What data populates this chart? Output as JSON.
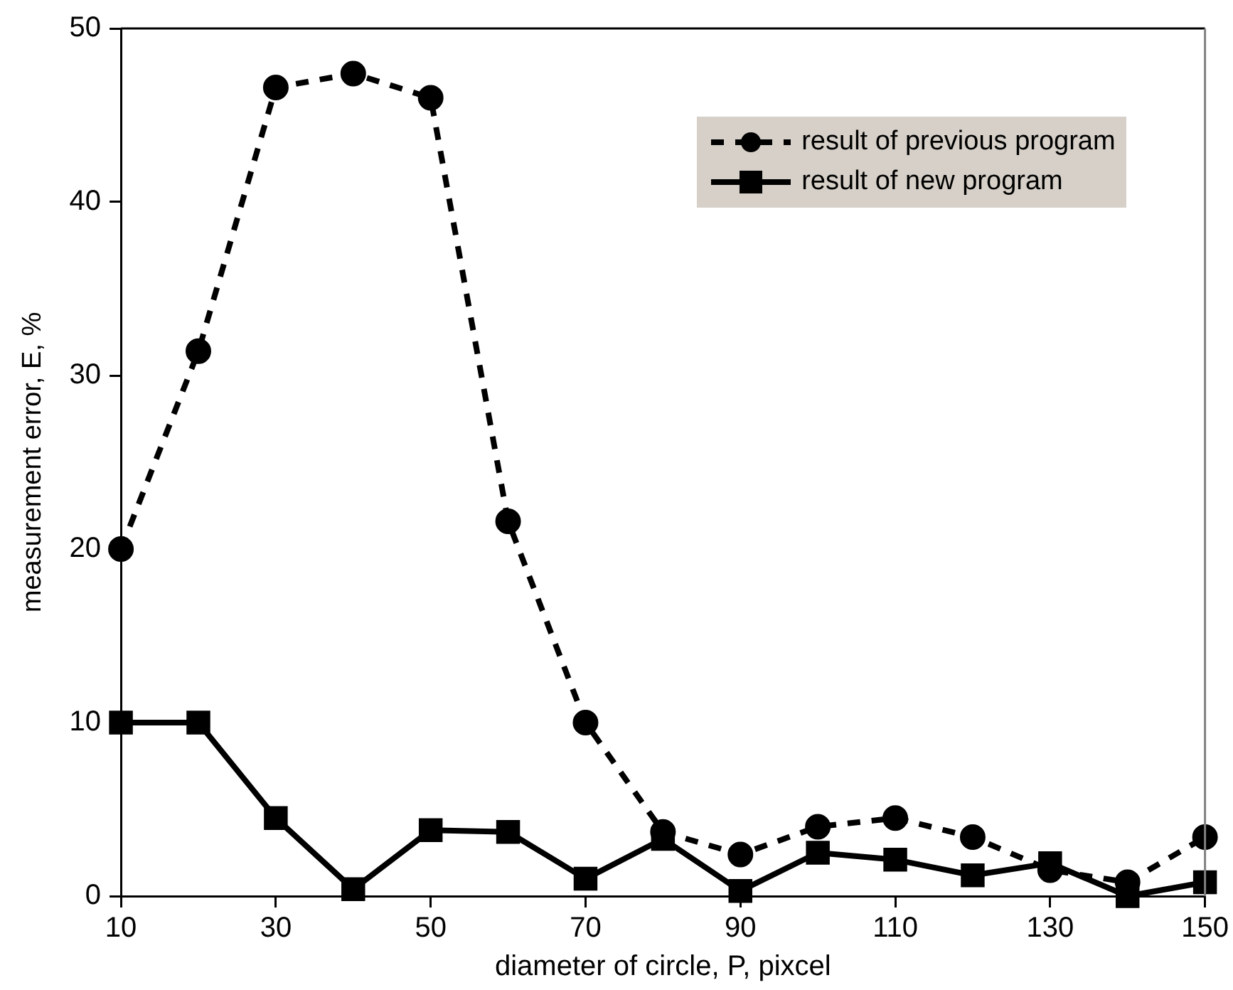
{
  "chart_data": {
    "type": "line",
    "xlabel": "diameter of circle, P, pixcel",
    "ylabel": "measurement error, E, %",
    "x": [
      10,
      20,
      30,
      40,
      50,
      60,
      70,
      80,
      90,
      100,
      110,
      120,
      130,
      140,
      150
    ],
    "xlim": [
      10,
      150
    ],
    "xticks": [
      10,
      30,
      50,
      70,
      90,
      110,
      130,
      150
    ],
    "ylim": [
      0,
      50
    ],
    "yticks": [
      0,
      10,
      20,
      30,
      40,
      50
    ],
    "grid": false,
    "legend": "top right",
    "series": [
      {
        "name": "result of previous program",
        "color": "#000000",
        "marker": "circle",
        "line_style": "dashed",
        "values": [
          20,
          31.4,
          46.6,
          47.4,
          46.0,
          21.6,
          10.0,
          3.7,
          2.4,
          4.0,
          4.5,
          3.4,
          1.5,
          0.8,
          3.4
        ]
      },
      {
        "name": "result of new program",
        "color": "#000000",
        "marker": "square",
        "line_style": "solid",
        "values": [
          10,
          10,
          4.5,
          0.4,
          3.8,
          3.7,
          1.0,
          3.3,
          0.3,
          2.5,
          2.1,
          1.2,
          1.9,
          0.0,
          0.8
        ]
      }
    ]
  }
}
